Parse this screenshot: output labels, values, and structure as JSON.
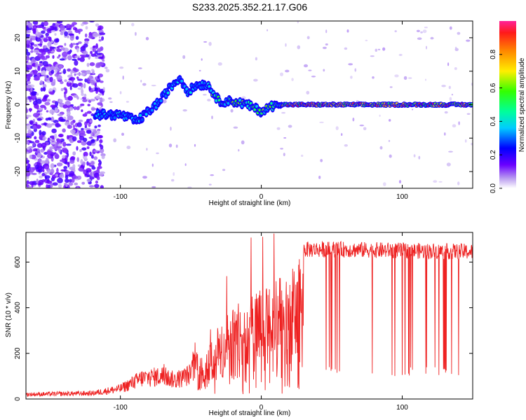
{
  "title": "S233.2025.352.21.17.G06",
  "chart_data": [
    {
      "type": "heatmap",
      "xlabel": "Height of straight line (km)",
      "ylabel": "Frequency (Hz)",
      "xlim": [
        -167,
        150
      ],
      "ylim": [
        -25,
        25
      ],
      "xticks": [
        -100,
        0,
        100
      ],
      "yticks": [
        -20,
        -10,
        0,
        10,
        20
      ],
      "colorbar": {
        "label": "Normalized spectral amplitude",
        "range": [
          0,
          1
        ],
        "ticks": [
          "0.0",
          "0.2",
          "0.4",
          "0.6",
          "0.8"
        ]
      },
      "ridge": [
        {
          "x": -115,
          "y": -3
        },
        {
          "x": -100,
          "y": -3
        },
        {
          "x": -88,
          "y": -5
        },
        {
          "x": -80,
          "y": -2
        },
        {
          "x": -72,
          "y": 1
        },
        {
          "x": -65,
          "y": 5
        },
        {
          "x": -58,
          "y": 8
        },
        {
          "x": -52,
          "y": 4
        },
        {
          "x": -45,
          "y": 6
        },
        {
          "x": -38,
          "y": 6
        },
        {
          "x": -30,
          "y": 1
        },
        {
          "x": -20,
          "y": 1
        },
        {
          "x": -10,
          "y": 0
        },
        {
          "x": 0,
          "y": -2
        },
        {
          "x": 10,
          "y": 0
        },
        {
          "x": 30,
          "y": 0
        },
        {
          "x": 150,
          "y": 0
        }
      ]
    },
    {
      "type": "line",
      "xlabel": "Height of straight line (km)",
      "ylabel": "SNR (10 * v/v)",
      "xlim": [
        -167,
        150
      ],
      "ylim": [
        0,
        730
      ],
      "xticks": [
        -100,
        0,
        100
      ],
      "yticks": [
        0,
        200,
        400,
        600
      ],
      "series_color": "#ee2222",
      "envelope": [
        {
          "x": -167,
          "y": 20
        },
        {
          "x": -120,
          "y": 25
        },
        {
          "x": -100,
          "y": 45
        },
        {
          "x": -85,
          "y": 90
        },
        {
          "x": -70,
          "y": 100
        },
        {
          "x": -60,
          "y": 80
        },
        {
          "x": -50,
          "y": 110
        },
        {
          "x": -40,
          "y": 230
        },
        {
          "x": -30,
          "y": 330
        },
        {
          "x": -20,
          "y": 400
        },
        {
          "x": -10,
          "y": 470
        },
        {
          "x": 0,
          "y": 490
        },
        {
          "x": 10,
          "y": 520
        },
        {
          "x": 20,
          "y": 560
        },
        {
          "x": 25,
          "y": 600
        },
        {
          "x": 30,
          "y": 650
        },
        {
          "x": 60,
          "y": 650
        },
        {
          "x": 100,
          "y": 645
        },
        {
          "x": 150,
          "y": 640
        }
      ]
    }
  ]
}
